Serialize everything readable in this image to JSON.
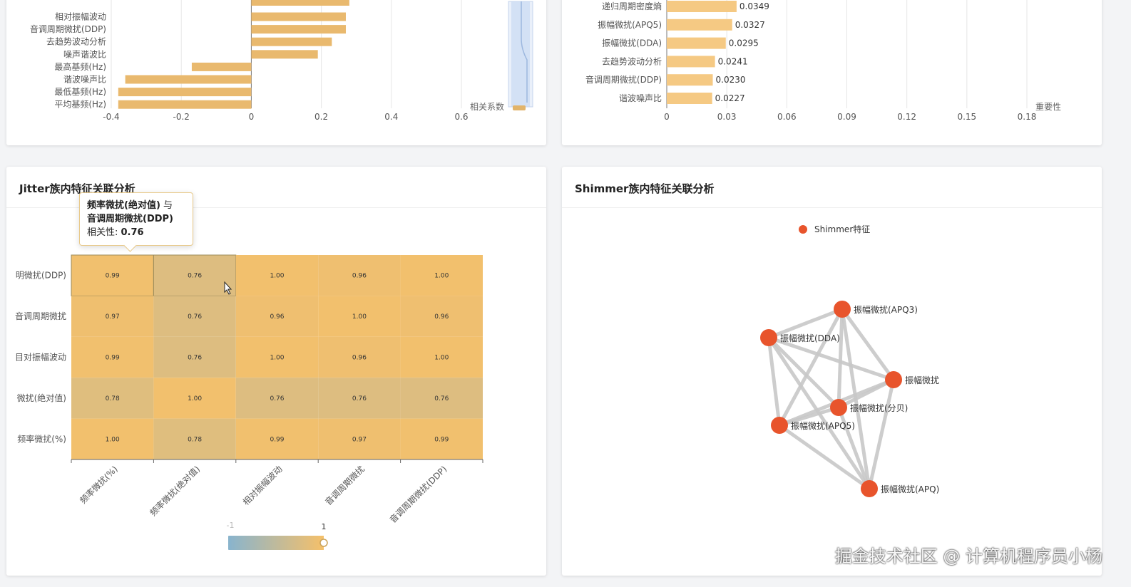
{
  "panel_top_left": {
    "chart_data": {
      "type": "bar",
      "orientation": "horizontal",
      "categories": [
        "相对振幅波动",
        "音调周期微扰(DDP)",
        "去趋势波动分析",
        "噪声谐波比",
        "最高基频(Hz)",
        "谐波噪声比",
        "最低基频(Hz)",
        "平均基频(Hz)"
      ],
      "values": [
        0.27,
        0.27,
        0.23,
        0.19,
        -0.17,
        -0.36,
        -0.38,
        -0.38
      ],
      "partial_top_bar_value": 0.28,
      "xlim": [
        -0.4,
        0.7
      ],
      "xticks": [
        "-0.4",
        "-0.2",
        "0",
        "0.2",
        "0.4",
        "0.6"
      ],
      "xlabel": "相关系数",
      "color": "#e9b96e"
    }
  },
  "panel_top_right": {
    "chart_data": {
      "type": "bar",
      "orientation": "horizontal",
      "categories": [
        "递归周期密度熵",
        "振幅微扰(APQ5)",
        "振幅微扰(DDA)",
        "去趋势波动分析",
        "音调周期微扰(DDP)",
        "谐波噪声比"
      ],
      "values": [
        0.0349,
        0.0327,
        0.0295,
        0.0241,
        0.023,
        0.0227
      ],
      "value_labels": [
        "0.0349",
        "0.0327",
        "0.0295",
        "0.0241",
        "0.0230",
        "0.0227"
      ],
      "xlim": [
        0,
        0.2
      ],
      "xticks": [
        "0",
        "0.03",
        "0.06",
        "0.09",
        "0.12",
        "0.15",
        "0.18"
      ],
      "xlabel": "重要性",
      "color": "#f5c983"
    }
  },
  "jitter_panel": {
    "title": "Jitter族内特征关联分析",
    "tooltip": {
      "pair_a": "频率微扰(绝对值)",
      "joiner": " 与",
      "pair_b": "音调周期微扰(DDP)",
      "label": "相关性: ",
      "value": "0.76"
    },
    "visual_map": {
      "min_label": "-1",
      "max_label": "1",
      "color_low": "#8ab4cc",
      "color_high": "#f5c06a"
    },
    "chart_data": {
      "type": "heatmap",
      "x_categories": [
        "频率微扰(%)",
        "频率微扰(绝对值)",
        "相对振幅波动",
        "音调周期微扰",
        "音调周期微扰(DDP)"
      ],
      "y_categories": [
        "音调周期微扰(DDP)",
        "音调周期微扰",
        "相对振幅波动",
        "频率微扰(绝对值)",
        "频率微扰(%)"
      ],
      "y_tick_labels_visible": [
        "明微扰(DDP)",
        "音调周期微扰",
        "目对振幅波动",
        "微扰(绝对值)",
        "频率微扰(%)"
      ],
      "values": [
        [
          "0.99",
          "0.76",
          "1.00",
          "0.96",
          "1.00"
        ],
        [
          "0.97",
          "0.76",
          "0.96",
          "1.00",
          "0.96"
        ],
        [
          "0.99",
          "0.76",
          "1.00",
          "0.96",
          "1.00"
        ],
        [
          "0.78",
          "1.00",
          "0.76",
          "0.76",
          "0.76"
        ],
        [
          "1.00",
          "0.78",
          "0.99",
          "0.97",
          "0.99"
        ]
      ],
      "highlighted_cell": {
        "row": 0,
        "col": 1
      }
    }
  },
  "shimmer_panel": {
    "title": "Shimmer族内特征关联分析",
    "legend": "Shimmer特征",
    "node_color": "#e8542c",
    "edge_color": "#c8c8c8",
    "chart_data": {
      "type": "graph",
      "nodes": [
        "振幅微扰(APQ3)",
        "振幅微扰(DDA)",
        "振幅微扰",
        "振幅微扰(分贝)",
        "振幅微扰(APQ5)",
        "振幅微扰(APQ)"
      ]
    }
  },
  "watermark": "掘金技术社区 @ 计算机程序员小杨"
}
